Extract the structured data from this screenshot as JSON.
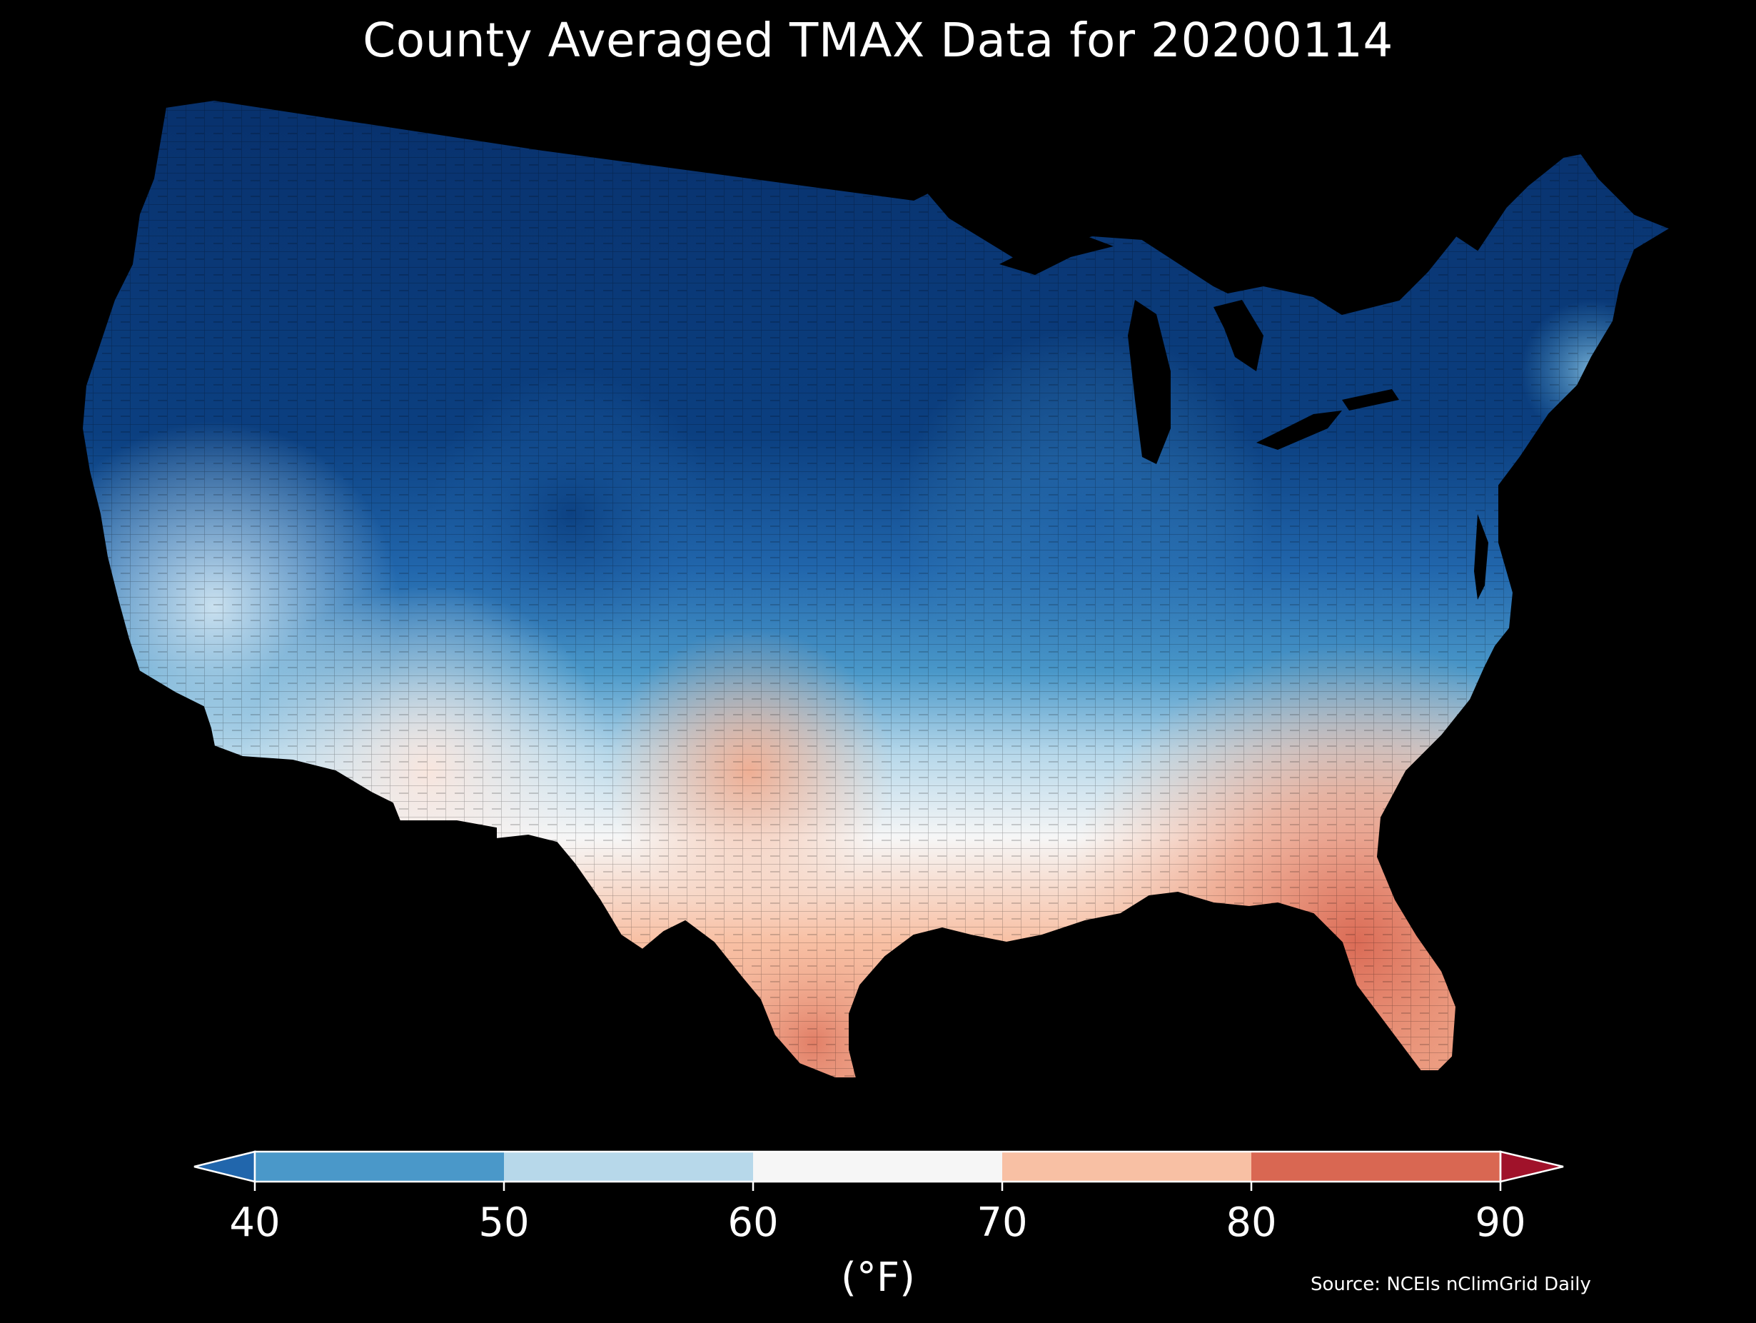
{
  "title": "County Averaged TMAX Data for 20200114",
  "colorbar": {
    "unit_label": "(°F)",
    "ticks": [
      "40",
      "50",
      "60",
      "70",
      "80",
      "90"
    ],
    "bins": [
      {
        "range": "<40",
        "color": "#2166ac"
      },
      {
        "range": "40-50",
        "color": "#4a98c9"
      },
      {
        "range": "50-60",
        "color": "#b7d8ea"
      },
      {
        "range": "60-70",
        "color": "#f6f6f6"
      },
      {
        "range": "70-80",
        "color": "#f8c0a4"
      },
      {
        "range": "80-90",
        "color": "#d96752"
      },
      {
        "range": ">90",
        "color": "#a0122a"
      }
    ]
  },
  "source": "Source: NCEIs nClimGrid Daily",
  "map": {
    "region": "contiguous-united-states",
    "level": "county",
    "variable": "TMAX",
    "background": "#000000",
    "colors": {
      "deep_blue": "#08306b",
      "navy": "#0b3f80",
      "mid_blue": "#2166ac",
      "light_blue": "#4a98c9",
      "pale_blue": "#b7d8ea",
      "white": "#f6f6f6",
      "peach": "#f8c0a4",
      "salmon": "#d96752"
    }
  }
}
